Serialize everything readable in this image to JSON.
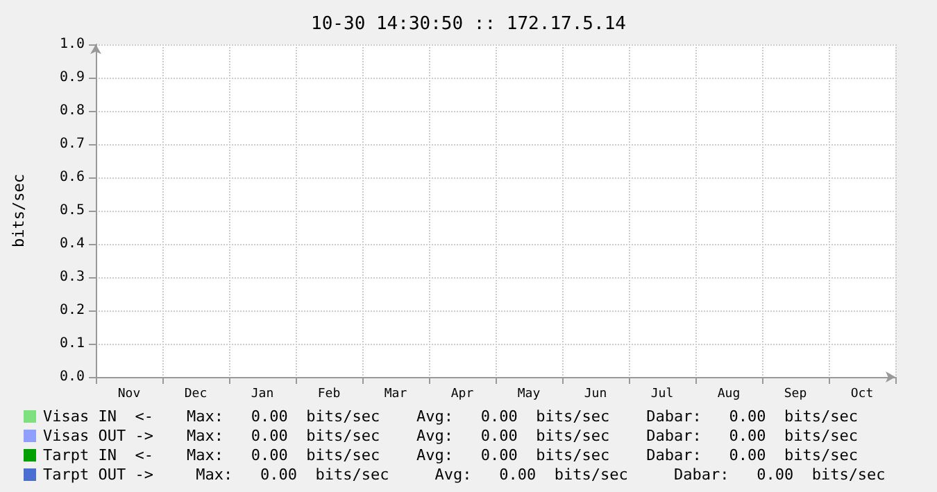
{
  "chart_data": {
    "type": "line",
    "title": "10-30 14:30:50 :: 172.17.5.14",
    "ylabel": "bits/sec",
    "categories": [
      "Nov",
      "Dec",
      "Jan",
      "Feb",
      "Mar",
      "Apr",
      "May",
      "Jun",
      "Jul",
      "Aug",
      "Sep",
      "Oct"
    ],
    "series": [
      {
        "name": "Visas IN  <-",
        "color": "#7ee07e",
        "values": [
          null,
          null,
          null,
          null,
          null,
          null,
          null,
          null,
          null,
          null,
          null,
          null
        ]
      },
      {
        "name": "Visas OUT ->",
        "color": "#8f9fff",
        "values": [
          null,
          null,
          null,
          null,
          null,
          null,
          null,
          null,
          null,
          null,
          null,
          null
        ]
      },
      {
        "name": "Tarpt IN  <-",
        "color": "#00a000",
        "values": [
          null,
          null,
          null,
          null,
          null,
          null,
          null,
          null,
          null,
          null,
          null,
          null
        ]
      },
      {
        "name": "Tarpt OUT ->",
        "color": "#4a6fd0",
        "values": [
          null,
          null,
          null,
          null,
          null,
          null,
          null,
          null,
          null,
          null,
          null,
          null
        ]
      }
    ],
    "annotations": [
      "    Max:   0.00  bits/sec    Avg:   0.00  bits/sec    Dabar:   0.00  bits/sec",
      "    Max:   0.00  bits/sec    Avg:   0.00  bits/sec    Dabar:   0.00  bits/sec",
      "    Max:   0.00  bits/sec    Avg:   0.00  bits/sec    Dabar:   0.00  bits/sec",
      "     Max:   0.00  bits/sec     Avg:   0.00  bits/sec     Dabar:   0.00  bits/sec"
    ],
    "ylim": [
      0,
      1.0
    ],
    "yticks": [
      {
        "value": 0,
        "label": "0.0"
      },
      {
        "value": 0.1,
        "label": "0.1"
      },
      {
        "value": 0.2,
        "label": "0.2"
      },
      {
        "value": 0.3,
        "label": "0.3"
      },
      {
        "value": 0.4,
        "label": "0.4"
      },
      {
        "value": 0.5,
        "label": "0.5"
      },
      {
        "value": 0.6,
        "label": "0.6"
      },
      {
        "value": 0.7,
        "label": "0.7"
      },
      {
        "value": 0.8,
        "label": "0.8"
      },
      {
        "value": 0.9,
        "label": "0.9"
      },
      {
        "value": 1.0,
        "label": "1.0"
      }
    ],
    "grid": true,
    "legend": "bottom"
  }
}
